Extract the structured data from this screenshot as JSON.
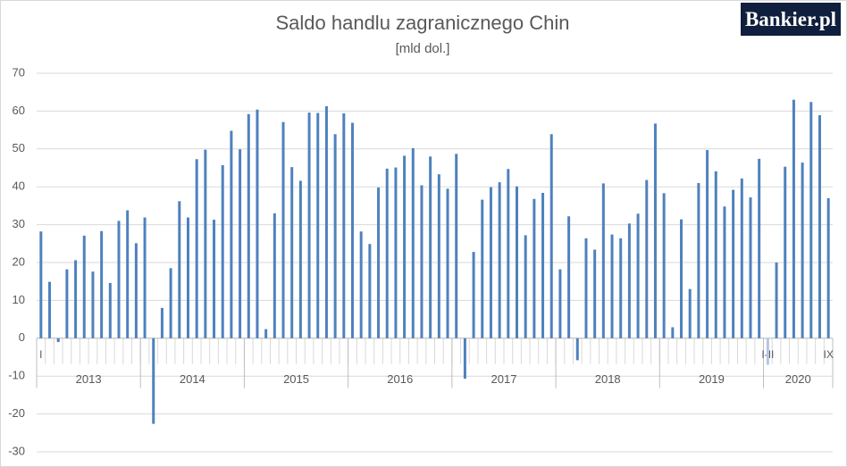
{
  "logo": "Bankier.pl",
  "chart_data": {
    "type": "bar",
    "title": "Saldo handlu zagranicznego Chin",
    "subtitle": "[mld dol.]",
    "categories": [
      "I",
      null,
      null,
      null,
      null,
      null,
      null,
      null,
      null,
      null,
      null,
      null,
      null,
      null,
      null,
      null,
      null,
      null,
      null,
      null,
      null,
      null,
      null,
      null,
      null,
      null,
      null,
      null,
      null,
      null,
      null,
      null,
      null,
      null,
      null,
      null,
      null,
      null,
      null,
      null,
      null,
      null,
      null,
      null,
      null,
      null,
      null,
      null,
      null,
      null,
      null,
      null,
      null,
      null,
      null,
      null,
      null,
      null,
      null,
      null,
      null,
      null,
      null,
      null,
      null,
      null,
      null,
      null,
      null,
      null,
      null,
      null,
      null,
      null,
      null,
      null,
      null,
      null,
      null,
      null,
      null,
      null,
      null,
      null,
      "I-II",
      null,
      null,
      null,
      null,
      null,
      null,
      "IX"
    ],
    "groups": [
      "2013",
      "2014",
      "2015",
      "2016",
      "2017",
      "2018",
      "2019",
      "2020"
    ],
    "values": [
      28.2,
      14.9,
      -1.0,
      18.2,
      20.6,
      27.1,
      17.6,
      28.3,
      14.6,
      31.0,
      33.8,
      25.1,
      31.9,
      -22.6,
      8.0,
      18.5,
      36.2,
      31.9,
      47.3,
      49.8,
      31.3,
      45.7,
      54.8,
      49.9,
      59.2,
      60.4,
      2.4,
      33.0,
      57.1,
      45.2,
      41.6,
      59.6,
      59.5,
      61.3,
      53.9,
      59.4,
      56.9,
      28.2,
      24.9,
      39.8,
      44.8,
      45.1,
      48.2,
      50.2,
      40.4,
      48.0,
      43.3,
      39.5,
      48.7,
      -10.7,
      22.8,
      36.6,
      39.9,
      41.2,
      44.7,
      40.1,
      27.2,
      36.8,
      38.4,
      53.9,
      18.2,
      32.2,
      -5.8,
      26.4,
      23.4,
      40.9,
      27.4,
      26.4,
      30.3,
      32.9,
      41.8,
      56.7,
      38.3,
      2.9,
      31.4,
      13.0,
      41.0,
      49.7,
      44.1,
      34.8,
      39.2,
      42.2,
      37.2,
      47.4,
      -7.0,
      20.0,
      45.3,
      63.0,
      46.4,
      62.4,
      58.9,
      37.0
    ],
    "color": "#4f81bd",
    "highlight_color": "#b4c7e7",
    "ylim": [
      -30,
      70
    ],
    "yticks": [
      -30,
      -20,
      -10,
      0,
      10,
      20,
      30,
      40,
      50,
      60,
      70
    ],
    "grid": true
  }
}
